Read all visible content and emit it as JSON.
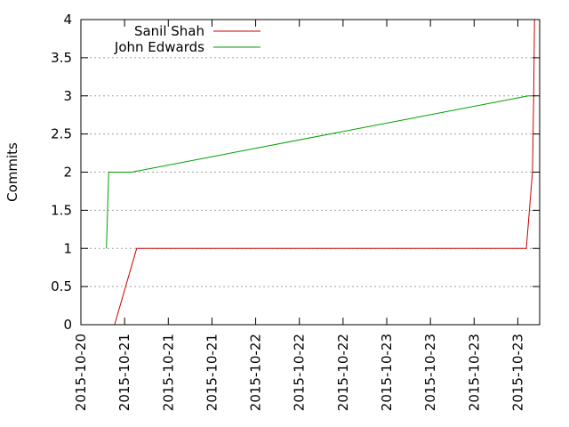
{
  "chart_data": {
    "type": "line",
    "title": "",
    "xlabel": "",
    "ylabel": "Commits",
    "ylim": [
      0,
      4
    ],
    "yticks": [
      0,
      0.5,
      1,
      1.5,
      2,
      2.5,
      3,
      3.5,
      4
    ],
    "ytick_labels": [
      "0",
      "0.5",
      "1",
      "1.5",
      "2",
      "2.5",
      "3",
      "3.5",
      "4"
    ],
    "xlim": [
      "2015-10-20 00:00",
      "2015-10-23 12:00"
    ],
    "xticks": [
      "2015-10-20 00:00",
      "2015-10-20 08:00",
      "2015-10-20 16:00",
      "2015-10-21 00:00",
      "2015-10-21 08:00",
      "2015-10-21 16:00",
      "2015-10-22 00:00",
      "2015-10-22 08:00",
      "2015-10-22 16:00",
      "2015-10-23 00:00",
      "2015-10-23 08:00"
    ],
    "xtick_labels": [
      "2015-10-20",
      "2015-10-21",
      "2015-10-21",
      "2015-10-21",
      "2015-10-22",
      "2015-10-22",
      "2015-10-22",
      "2015-10-23",
      "2015-10-23",
      "2015-10-23",
      "2015-10-23"
    ],
    "grid": true,
    "legend_position": "top-left",
    "series": [
      {
        "name": "Sanil Shah",
        "color": "#cc0000",
        "points": [
          {
            "x": "2015-10-20 06:10",
            "y": 0
          },
          {
            "x": "2015-10-20 10:12",
            "y": 1
          },
          {
            "x": "2015-10-23 09:33",
            "y": 1
          },
          {
            "x": "2015-10-23 10:41",
            "y": 2
          },
          {
            "x": "2015-10-23 10:55",
            "y": 3
          },
          {
            "x": "2015-10-23 11:03",
            "y": 4
          }
        ]
      },
      {
        "name": "John Edwards",
        "color": "#00a000",
        "points": [
          {
            "x": "2015-10-20 04:40",
            "y": 1
          },
          {
            "x": "2015-10-20 05:06",
            "y": 2
          },
          {
            "x": "2015-10-20 09:17",
            "y": 2
          },
          {
            "x": "2015-10-23 09:55",
            "y": 3
          },
          {
            "x": "2015-10-23 11:03",
            "y": 3
          }
        ]
      }
    ]
  }
}
